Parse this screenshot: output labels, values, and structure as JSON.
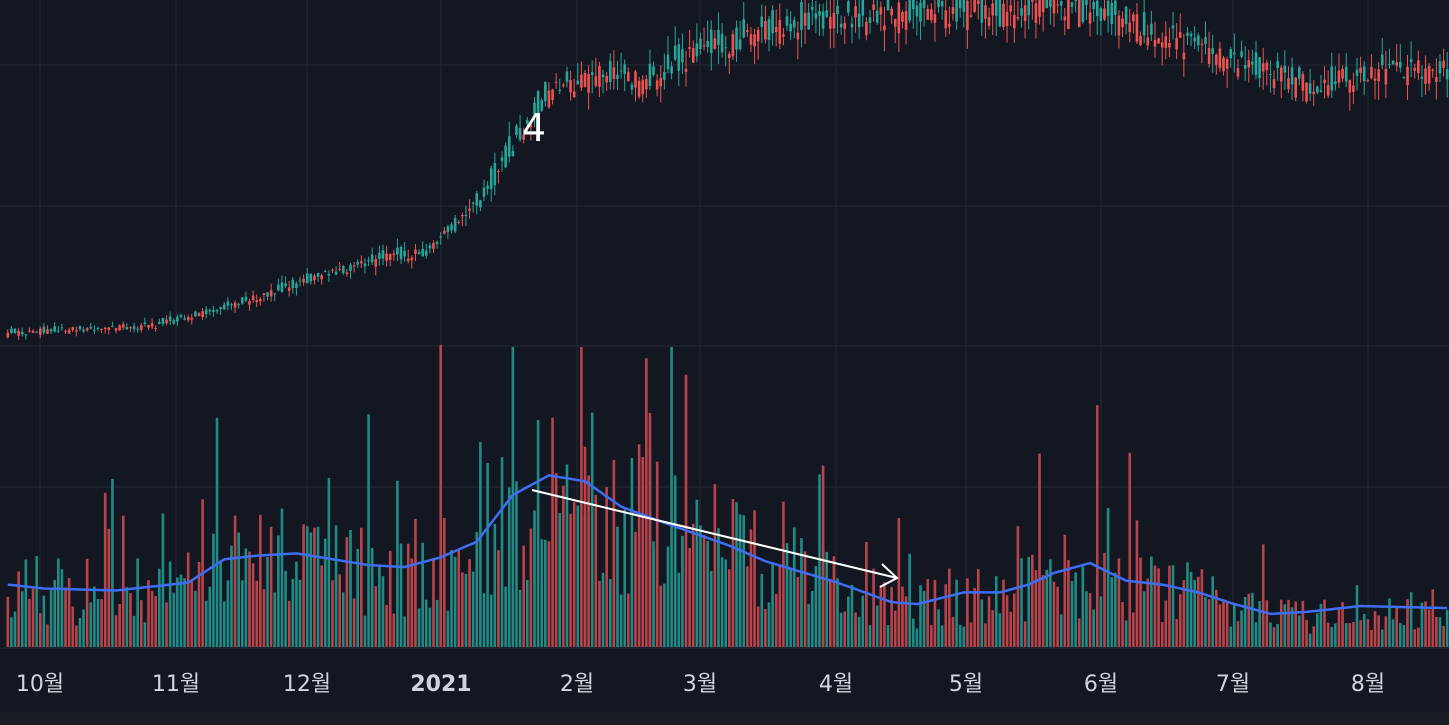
{
  "chart_data": {
    "type": "candlestick_volume",
    "colors": {
      "background": "#131722",
      "grid": "#232834",
      "up": "#26a69a",
      "down": "#ef5350",
      "up_volume": "#1f8b84",
      "down_volume": "#b8444a",
      "volume_ma": "#3d6ef5",
      "axis_text": "#d1d4dc",
      "annotation": "#ffffff"
    },
    "x_axis": {
      "ticks": [
        {
          "label": "10월",
          "bold": false
        },
        {
          "label": "11월",
          "bold": false
        },
        {
          "label": "12월",
          "bold": false
        },
        {
          "label": "2021",
          "bold": true
        },
        {
          "label": "2월",
          "bold": false
        },
        {
          "label": "3월",
          "bold": false
        },
        {
          "label": "4월",
          "bold": false
        },
        {
          "label": "5월",
          "bold": false
        },
        {
          "label": "6월",
          "bold": false
        },
        {
          "label": "7월",
          "bold": false
        },
        {
          "label": "8월",
          "bold": false
        }
      ]
    },
    "price_trend_anchors": [
      [
        0,
        0.02
      ],
      [
        40,
        0.05
      ],
      [
        60,
        0.12
      ],
      [
        90,
        0.26
      ],
      [
        105,
        0.32
      ],
      [
        115,
        0.34
      ],
      [
        130,
        0.53
      ],
      [
        148,
        0.95
      ],
      [
        165,
        1.05
      ],
      [
        175,
        1.0
      ],
      [
        190,
        1.12
      ],
      [
        220,
        1.25
      ],
      [
        260,
        1.28
      ],
      [
        300,
        1.3
      ],
      [
        320,
        1.18
      ],
      [
        345,
        1.06
      ],
      [
        362,
        0.98
      ],
      [
        370,
        1.02
      ],
      [
        380,
        1.05
      ],
      [
        398,
        1.05
      ]
    ],
    "volume_ma_anchors": [
      [
        0,
        0.32
      ],
      [
        10,
        0.3
      ],
      [
        30,
        0.29
      ],
      [
        50,
        0.33
      ],
      [
        60,
        0.45
      ],
      [
        70,
        0.47
      ],
      [
        80,
        0.48
      ],
      [
        90,
        0.45
      ],
      [
        100,
        0.42
      ],
      [
        110,
        0.41
      ],
      [
        120,
        0.46
      ],
      [
        130,
        0.54
      ],
      [
        140,
        0.78
      ],
      [
        150,
        0.88
      ],
      [
        160,
        0.85
      ],
      [
        170,
        0.72
      ],
      [
        180,
        0.65
      ],
      [
        200,
        0.52
      ],
      [
        210,
        0.44
      ],
      [
        230,
        0.33
      ],
      [
        245,
        0.23
      ],
      [
        252,
        0.22
      ],
      [
        265,
        0.28
      ],
      [
        275,
        0.28
      ],
      [
        283,
        0.32
      ],
      [
        290,
        0.38
      ],
      [
        300,
        0.43
      ],
      [
        310,
        0.34
      ],
      [
        320,
        0.32
      ],
      [
        330,
        0.28
      ],
      [
        340,
        0.22
      ],
      [
        350,
        0.17
      ],
      [
        360,
        0.18
      ],
      [
        375,
        0.21
      ],
      [
        398,
        0.2
      ]
    ],
    "annotations": [
      {
        "type": "text",
        "text": "4"
      },
      {
        "type": "arrow"
      }
    ]
  }
}
